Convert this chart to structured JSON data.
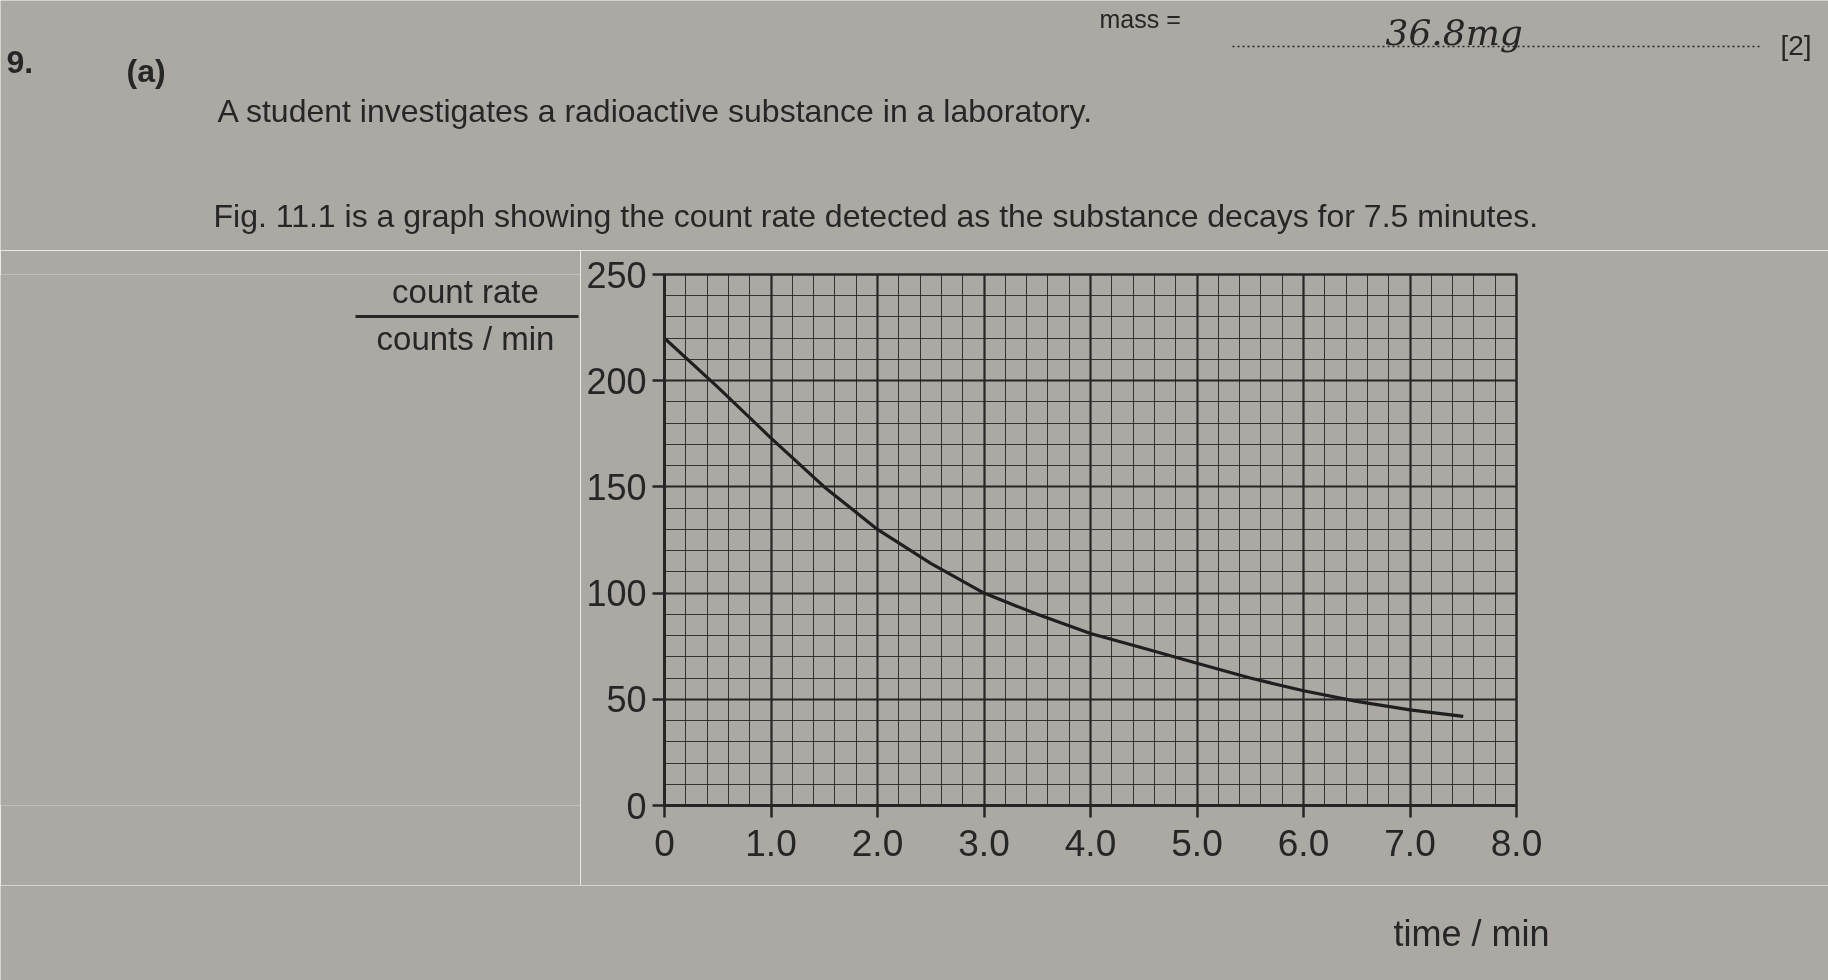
{
  "chart_data": {
    "type": "line",
    "title": "A student investigates a radioactive substance in a laboratory.",
    "subtitle": "Fig. 11.1 is a graph showing the count rate detected as the substance decays for 7.5 minutes.",
    "xlabel": "time / min",
    "ylabel": "count rate\ncounts / min",
    "annotations": [
      "9.",
      "(a)",
      "mass =",
      "36.8mg",
      "[2]"
    ],
    "x": [
      0,
      0.5,
      1,
      1.5,
      2,
      2.5,
      3,
      3.5,
      4,
      4.5,
      5,
      5.5,
      6,
      6.5,
      7,
      7.5
    ],
    "series": [
      {
        "color": "#1f1f1f",
        "values": [
          220,
          197,
          173,
          150,
          130,
          114,
          100,
          90,
          81,
          74,
          67,
          60,
          54,
          49,
          45,
          42
        ]
      }
    ],
    "xlim": [
      0,
      8
    ],
    "ylim": [
      0,
      250
    ],
    "xticks": [
      0,
      {
        "value": 1,
        "label": "1.0"
      },
      {
        "value": 2,
        "label": "2.0"
      },
      {
        "value": 3,
        "label": "3.0"
      },
      {
        "value": 4,
        "label": "4.0"
      },
      {
        "value": 5,
        "label": "5.0"
      },
      {
        "value": 6,
        "label": "6.0"
      },
      {
        "value": 7,
        "label": "7.0"
      },
      {
        "value": 8,
        "label": "8.0"
      }
    ],
    "yticks": [
      0,
      50,
      100,
      150,
      200,
      250
    ],
    "grid": true
  }
}
